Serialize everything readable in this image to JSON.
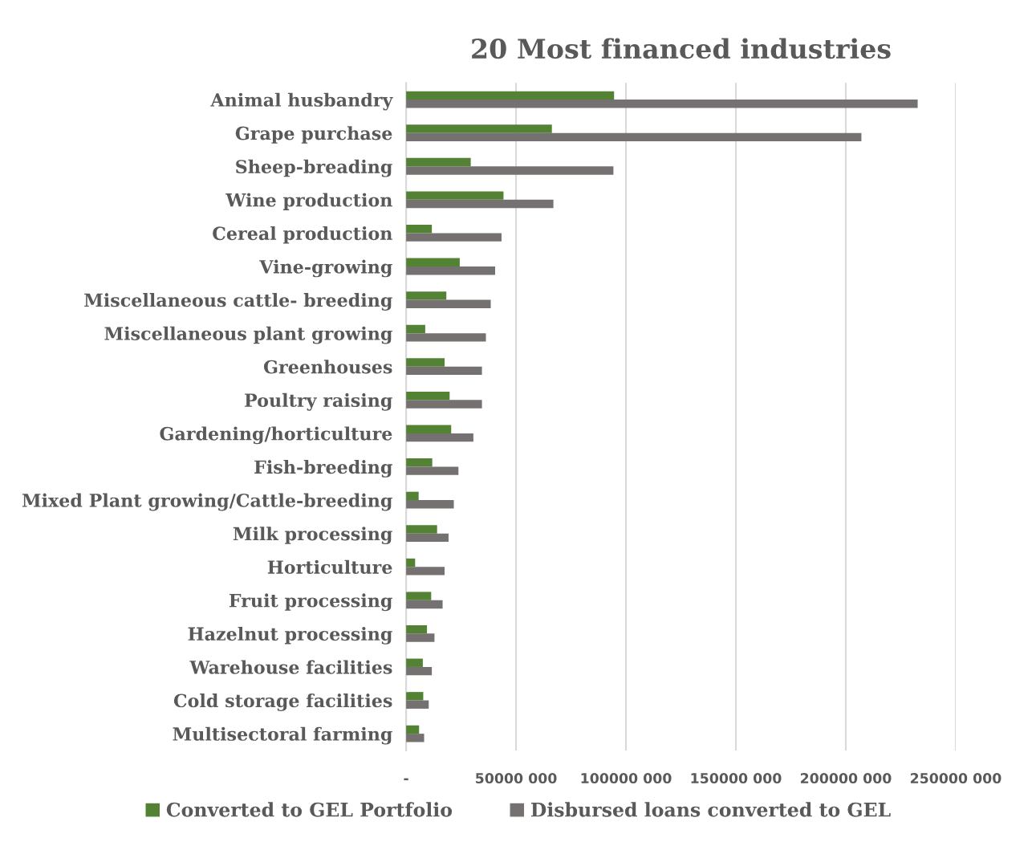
{
  "chart_data": {
    "type": "bar",
    "orientation": "horizontal",
    "title": "20 Most financed industries",
    "categories": [
      "Animal husbandry",
      "Grape purchase",
      "Sheep-breading",
      "Wine production",
      "Cereal production",
      "Vine-growing",
      "Miscellaneous cattle- breeding",
      "Miscellaneous plant growing",
      "Greenhouses",
      "Poultry raising",
      "Gardening/horticulture",
      "Fish-breeding",
      "Mixed Plant growing/Cattle-breeding",
      "Milk processing",
      "Horticulture",
      "Fruit processing",
      "Hazelnut processing",
      "Warehouse facilities",
      "Cold storage facilities",
      "Multisectoral farming"
    ],
    "series": [
      {
        "name": "Converted to GEL Portfolio",
        "color": "#548235",
        "values": [
          94600000,
          66300000,
          29400000,
          44300000,
          11700000,
          24400000,
          18300000,
          8700000,
          17500000,
          19800000,
          20500000,
          11900000,
          5700000,
          14100000,
          4100000,
          11400000,
          9500000,
          7600000,
          7800000,
          5900000
        ]
      },
      {
        "name": "Disbursed loans converted to GEL",
        "color": "#767171",
        "values": [
          232700000,
          207100000,
          94300000,
          67000000,
          43400000,
          40500000,
          38500000,
          36300000,
          34500000,
          34500000,
          30600000,
          23800000,
          21700000,
          19300000,
          17500000,
          16600000,
          12900000,
          11700000,
          10300000,
          8200000
        ]
      }
    ],
    "xlim": [
      0,
      250000000
    ],
    "xticks": [
      {
        "value": 0,
        "label": "-"
      },
      {
        "value": 50000000,
        "label": "50000 000"
      },
      {
        "value": 100000000,
        "label": "100000 000"
      },
      {
        "value": 150000000,
        "label": "150000 000"
      },
      {
        "value": 200000000,
        "label": "200000 000"
      },
      {
        "value": 250000000,
        "label": "250000 000"
      }
    ],
    "grid": "x",
    "legend": "bottom"
  }
}
